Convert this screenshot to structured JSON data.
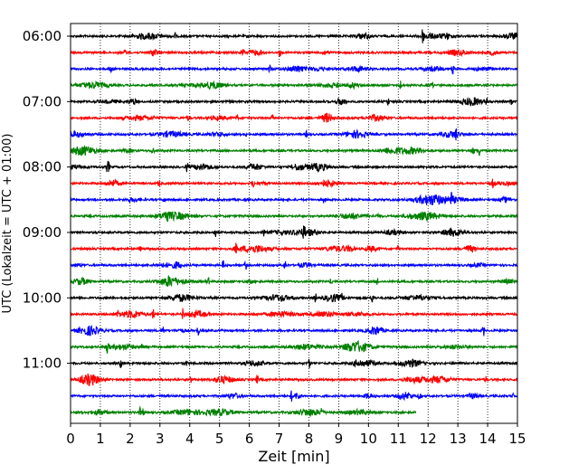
{
  "chart_data": {
    "type": "line",
    "subtype": "helicorder",
    "xlabel": "Zeit  [min]",
    "ylabel": "UTC (Lokalzeit = UTC + 01:00)",
    "xlim": [
      0,
      15
    ],
    "x_ticks": [
      0,
      1,
      2,
      3,
      4,
      5,
      6,
      7,
      8,
      9,
      10,
      11,
      12,
      13,
      14,
      15
    ],
    "x_tick_labels": [
      "0",
      "1",
      "2",
      "3",
      "4",
      "5",
      "6",
      "7",
      "8",
      "9",
      "10",
      "11",
      "12",
      "13",
      "14",
      "15"
    ],
    "vertical_grid": "dotted at each minute",
    "trace_interval_minutes": 15,
    "y_tick_labels": [
      "06:00",
      "07:00",
      "08:00",
      "09:00",
      "10:00",
      "11:00"
    ],
    "color_cycle": [
      "#000000",
      "#ff0000",
      "#0000ff",
      "#008000"
    ],
    "series": [
      {
        "start": "06:00",
        "end_minute": 15,
        "color": "#000000"
      },
      {
        "start": "06:15",
        "end_minute": 15,
        "color": "#ff0000"
      },
      {
        "start": "06:30",
        "end_minute": 15,
        "color": "#0000ff"
      },
      {
        "start": "06:45",
        "end_minute": 15,
        "color": "#008000"
      },
      {
        "start": "07:00",
        "end_minute": 15,
        "color": "#000000"
      },
      {
        "start": "07:15",
        "end_minute": 15,
        "color": "#ff0000"
      },
      {
        "start": "07:30",
        "end_minute": 15,
        "color": "#0000ff"
      },
      {
        "start": "07:45",
        "end_minute": 15,
        "color": "#008000"
      },
      {
        "start": "08:00",
        "end_minute": 15,
        "color": "#000000"
      },
      {
        "start": "08:15",
        "end_minute": 15,
        "color": "#ff0000"
      },
      {
        "start": "08:30",
        "end_minute": 15,
        "color": "#0000ff"
      },
      {
        "start": "08:45",
        "end_minute": 15,
        "color": "#008000"
      },
      {
        "start": "09:00",
        "end_minute": 15,
        "color": "#000000"
      },
      {
        "start": "09:15",
        "end_minute": 15,
        "color": "#ff0000"
      },
      {
        "start": "09:30",
        "end_minute": 15,
        "color": "#0000ff"
      },
      {
        "start": "09:45",
        "end_minute": 15,
        "color": "#008000"
      },
      {
        "start": "10:00",
        "end_minute": 15,
        "color": "#000000"
      },
      {
        "start": "10:15",
        "end_minute": 15,
        "color": "#ff0000"
      },
      {
        "start": "10:30",
        "end_minute": 15,
        "color": "#0000ff"
      },
      {
        "start": "10:45",
        "end_minute": 15,
        "color": "#008000"
      },
      {
        "start": "11:00",
        "end_minute": 15,
        "color": "#000000"
      },
      {
        "start": "11:15",
        "end_minute": 15,
        "color": "#ff0000"
      },
      {
        "start": "11:30",
        "end_minute": 15,
        "color": "#0000ff"
      },
      {
        "start": "11:45",
        "end_minute": 11.6,
        "color": "#008000"
      }
    ]
  }
}
